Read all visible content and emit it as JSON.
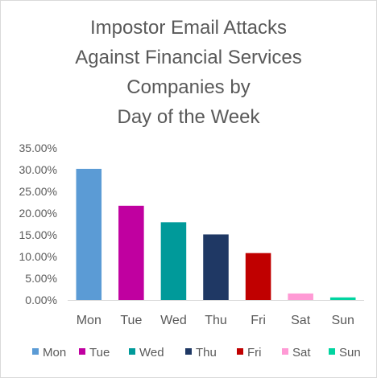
{
  "chart_data": {
    "type": "bar",
    "title_lines": [
      "Impostor Email Attacks",
      "Against Financial Services",
      "Companies by",
      "Day of the Week"
    ],
    "categories": [
      "Mon",
      "Tue",
      "Wed",
      "Thu",
      "Fri",
      "Sat",
      "Sun"
    ],
    "values": [
      30.2,
      21.7,
      17.9,
      15.1,
      10.8,
      1.5,
      0.6
    ],
    "colors": [
      "#5b9bd5",
      "#c000a0",
      "#009a9a",
      "#1f3864",
      "#c00000",
      "#ff9ad5",
      "#00d4a0"
    ],
    "ylim": [
      0,
      35
    ],
    "yticks": [
      "0.00%",
      "5.00%",
      "10.00%",
      "15.00%",
      "20.00%",
      "25.00%",
      "30.00%",
      "35.00%"
    ],
    "legend": [
      "Mon",
      "Tue",
      "Wed",
      "Thu",
      "Fri",
      "Sat",
      "Sun"
    ],
    "grid": false,
    "legend_position": "bottom"
  }
}
